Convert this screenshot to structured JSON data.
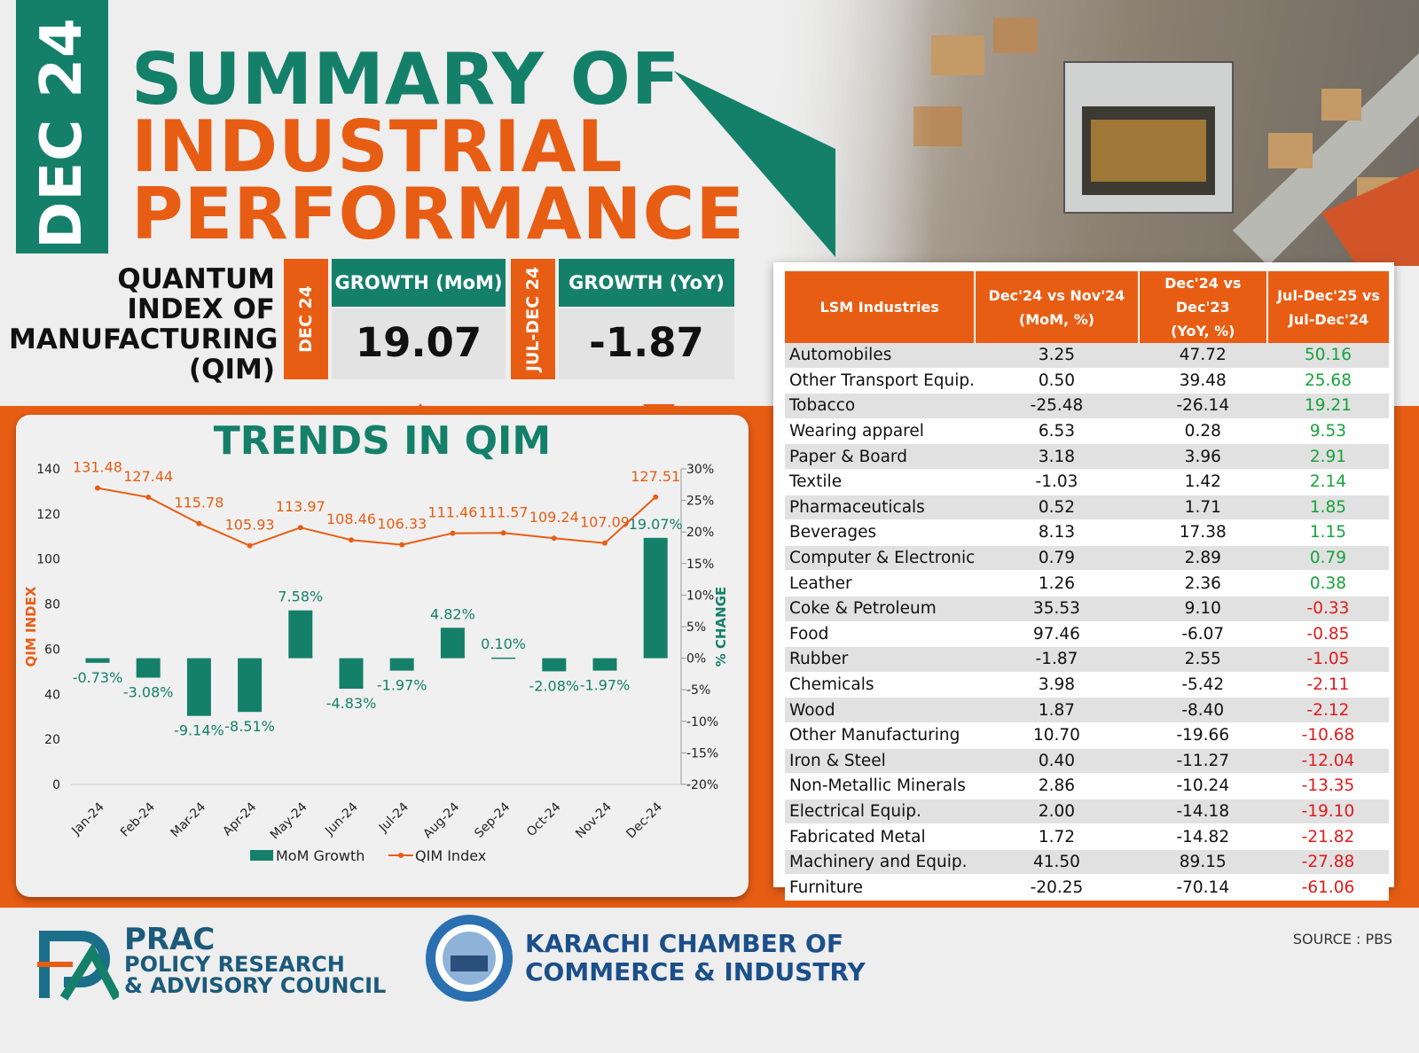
{
  "header": {
    "date_tab": "DEC 24",
    "title_line1": "SUMMARY OF",
    "title_line2": "INDUSTRIAL",
    "title_line3": "PERFORMANCE"
  },
  "qim": {
    "label": [
      "QUANTUM",
      "INDEX OF",
      "MANUFACTURING",
      "(QIM)"
    ],
    "mom_tab": "DEC 24",
    "mom_head": "GROWTH (MoM)",
    "mom_value": "19.07",
    "yoy_tab": "JUL-DEC 24",
    "yoy_head": "GROWTH (YoY)",
    "yoy_value": "-1.87"
  },
  "colors": {
    "green": "#15806a",
    "orange": "#e85d14",
    "positive": "#16a33a",
    "negative": "#e01b1b"
  },
  "chart_data": {
    "type": "bar",
    "title": "TRENDS IN QIM",
    "categories": [
      "Jan-24",
      "Feb-24",
      "Mar-24",
      "Apr-24",
      "May-24",
      "Jun-24",
      "Jul-24",
      "Aug-24",
      "Sep-24",
      "Oct-24",
      "Nov-24",
      "Dec-24"
    ],
    "series": [
      {
        "name": "MoM Growth",
        "type": "bar",
        "axis": "right",
        "values": [
          -0.73,
          -3.08,
          -9.14,
          -8.51,
          7.58,
          -4.83,
          -1.97,
          4.82,
          0.1,
          -2.08,
          -1.97,
          19.07
        ],
        "labels": [
          "-0.73%",
          "-3.08%",
          "-9.14%",
          "-8.51%",
          "7.58%",
          "-4.83%",
          "-1.97%",
          "4.82%",
          "0.10%",
          "-2.08%",
          "-1.97%",
          "19.07%"
        ]
      },
      {
        "name": "QIM Index",
        "type": "line",
        "axis": "left",
        "values": [
          131.48,
          127.44,
          115.78,
          105.93,
          113.97,
          108.46,
          106.33,
          111.46,
          111.57,
          109.24,
          107.09,
          127.51
        ]
      }
    ],
    "ylabel": "QIM INDEX",
    "y2label": "% CHANGE",
    "ylim": [
      0,
      140
    ],
    "y2lim": [
      -20,
      30
    ],
    "yticks": [
      "0",
      "20",
      "40",
      "60",
      "80",
      "100",
      "120",
      "140"
    ],
    "y2ticks": [
      "-20%",
      "-15%",
      "-10%",
      "-5%",
      "0%",
      "5%",
      "10%",
      "15%",
      "20%",
      "25%",
      "30%"
    ],
    "legend_position": "bottom",
    "grid": false
  },
  "table": {
    "headers": [
      "LSM Industries",
      "Dec'24 vs Nov'24\n(MoM, %)",
      "Dec'24 vs Dec'23\n(YoY, %)",
      "Jul-Dec'25 vs\nJul-Dec'24"
    ],
    "rows": [
      [
        "Automobiles",
        "3.25",
        "47.72",
        "50.16"
      ],
      [
        "Other Transport Equip.",
        "0.50",
        "39.48",
        "25.68"
      ],
      [
        "Tobacco",
        "-25.48",
        "-26.14",
        "19.21"
      ],
      [
        "Wearing apparel",
        "6.53",
        "0.28",
        "9.53"
      ],
      [
        "Paper & Board",
        "3.18",
        "3.96",
        "2.91"
      ],
      [
        "Textile",
        "-1.03",
        "1.42",
        "2.14"
      ],
      [
        "Pharmaceuticals",
        "0.52",
        "1.71",
        "1.85"
      ],
      [
        "Beverages",
        "8.13",
        "17.38",
        "1.15"
      ],
      [
        "Computer & Electronic",
        "0.79",
        "2.89",
        "0.79"
      ],
      [
        "Leather",
        "1.26",
        "2.36",
        "0.38"
      ],
      [
        "Coke & Petroleum",
        "35.53",
        "9.10",
        "-0.33"
      ],
      [
        "Food",
        "97.46",
        "-6.07",
        "-0.85"
      ],
      [
        "Rubber",
        "-1.87",
        "2.55",
        "-1.05"
      ],
      [
        "Chemicals",
        "3.98",
        "-5.42",
        "-2.11"
      ],
      [
        "Wood",
        "1.87",
        "-8.40",
        "-2.12"
      ],
      [
        "Other Manufacturing",
        "10.70",
        "-19.66",
        "-10.68"
      ],
      [
        "Iron & Steel",
        "0.40",
        "-11.27",
        "-12.04"
      ],
      [
        "Non-Metallic Minerals",
        "2.86",
        "-10.24",
        "-13.35"
      ],
      [
        "Electrical Equip.",
        "2.00",
        "-14.18",
        "-19.10"
      ],
      [
        "Fabricated Metal",
        "1.72",
        "-14.82",
        "-21.82"
      ],
      [
        "Machinery and Equip.",
        "41.50",
        "89.15",
        "-27.88"
      ],
      [
        "Furniture",
        "-20.25",
        "-70.14",
        "-61.06"
      ]
    ]
  },
  "footer": {
    "prac_name": "PRAC",
    "prac_line2": "POLICY RESEARCH",
    "prac_line3": "& ADVISORY COUNCIL",
    "kcci_line1": "KARACHI CHAMBER OF",
    "kcci_line2": "COMMERCE & INDUSTRY",
    "source": "SOURCE : PBS"
  }
}
